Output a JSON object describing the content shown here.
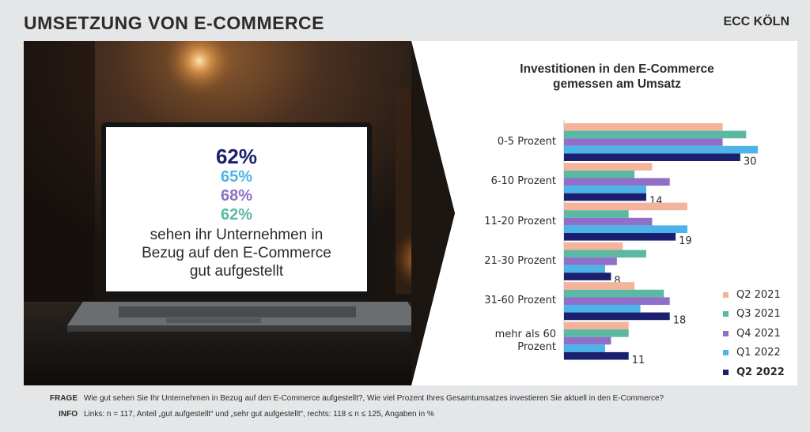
{
  "header": {
    "title": "UMSETZUNG VON E-COMMERCE",
    "brand": "ECC KÖLN"
  },
  "screen": {
    "pct1": "62%",
    "pct2": "65%",
    "pct3": "68%",
    "pct4": "62%",
    "caption_line1": "sehen ihr Unternehmen in",
    "caption_line2": "Bezug auf den E-Commerce",
    "caption_line3": "gut aufgestellt",
    "pct_colors": {
      "q2_2022": "#1a1f6e",
      "q1_2022": "#4db3e8",
      "q4_2021": "#8f6fc8",
      "q3_2021": "#5bb8a3"
    }
  },
  "chart_data": {
    "type": "bar",
    "orientation": "horizontal",
    "title": "Investitionen in den E-Commerce gemessen am Umsatz",
    "title_line1": "Investitionen in den E-Commerce",
    "title_line2": "gemessen am Umsatz",
    "categories": [
      "0-5 Prozent",
      "6-10 Prozent",
      "11-20 Prozent",
      "21-30 Prozent",
      "31-60 Prozent",
      "mehr als 60 Prozent"
    ],
    "category_lines": [
      [
        "0-5 Prozent"
      ],
      [
        "6-10 Prozent"
      ],
      [
        "11-20 Prozent"
      ],
      [
        "21-30 Prozent"
      ],
      [
        "31-60 Prozent"
      ],
      [
        "mehr als 60",
        "Prozent"
      ]
    ],
    "series": [
      {
        "name": "Q2 2021",
        "color": "#f3b49b",
        "values": [
          27,
          15,
          21,
          10,
          12,
          11
        ]
      },
      {
        "name": "Q3 2021",
        "color": "#5bb8a3",
        "values": [
          31,
          12,
          11,
          14,
          17,
          11
        ]
      },
      {
        "name": "Q4 2021",
        "color": "#8f6fc8",
        "values": [
          27,
          18,
          15,
          9,
          18,
          8
        ]
      },
      {
        "name": "Q1 2022",
        "color": "#4db3e8",
        "values": [
          33,
          14,
          21,
          7,
          13,
          7
        ]
      },
      {
        "name": "Q2 2022",
        "color": "#1a1f6e",
        "values": [
          30,
          14,
          19,
          8,
          18,
          11
        ]
      }
    ],
    "data_labels": [
      "30",
      "14",
      "19",
      "8",
      "18",
      "11"
    ],
    "xlim": [
      0,
      35
    ],
    "grid": false,
    "legend_position": "bottom-right"
  },
  "footer": {
    "frage_key": "FRAGE",
    "frage_text": "Wie gut sehen Sie Ihr Unternehmen in Bezug auf den E-Commerce aufgestellt?, Wie viel Prozent Ihres Gesamtumsatzes investieren Sie aktuell in den E-Commerce?",
    "info_key": "INFO",
    "info_text": "Links: n = 117, Anteil „gut aufgestellt“ und „sehr gut aufgestellt“, rechts: 118 ≤ n ≤ 125, Angaben in %"
  }
}
